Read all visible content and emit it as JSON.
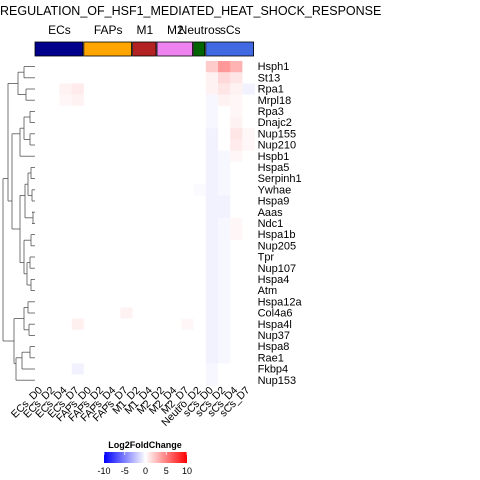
{
  "chart_data": {
    "type": "heatmap",
    "title": "REGULATION_OF_HSF1_MEDIATED_HEAT_SHOCK_RESPONSE",
    "columns": [
      "ECs_D0",
      "ECs_D2",
      "ECs_D4",
      "ECs_D7",
      "FAPs_D0",
      "FAPs_D2",
      "FAPs_D4",
      "FAPs_D7",
      "M1_D2",
      "M1_D4",
      "M2_D2",
      "M2_D4",
      "M2_D7",
      "Neutro_D2",
      "sCs_D0",
      "sCs_D2",
      "sCs_D4",
      "sCs_D7"
    ],
    "rows": [
      "Hsph1",
      "St13",
      "Rpa1",
      "Mrpl18",
      "Rpa3",
      "Dnajc2",
      "Nup155",
      "Nup210",
      "Hspb1",
      "Hspa5",
      "Serpinh1",
      "Ywhae",
      "Hspa9",
      "Aaas",
      "Ndc1",
      "Hspa1b",
      "Nup205",
      "Tpr",
      "Nup107",
      "Hspa4",
      "Atm",
      "Hspa12a",
      "Col4a6",
      "Hspa4l",
      "Nup37",
      "Hspa8",
      "Rae1",
      "Fkbp4",
      "Nup153"
    ],
    "groups": [
      {
        "name": "ECs",
        "color": "#00008B",
        "count": 4
      },
      {
        "name": "FAPs",
        "color": "#FFA500",
        "count": 4
      },
      {
        "name": "M1",
        "color": "#B22222",
        "count": 2
      },
      {
        "name": "M2",
        "color": "#EE82EE",
        "count": 3
      },
      {
        "name": "Neutros",
        "color": "#006400",
        "count": 1
      },
      {
        "name": "sCs",
        "color": "#4169E1",
        "count": 4
      }
    ],
    "values": [
      [
        0,
        0,
        0,
        0,
        0,
        0,
        0,
        0,
        0,
        0,
        0,
        0,
        0,
        0,
        2,
        4,
        3,
        0
      ],
      [
        0,
        0,
        0,
        0,
        0,
        0,
        0,
        0,
        0,
        0,
        0,
        0,
        0,
        0,
        0.5,
        1.5,
        1,
        0
      ],
      [
        0,
        0,
        0.5,
        0.8,
        0,
        0,
        0,
        0,
        0,
        0,
        0,
        0,
        0,
        0,
        0.5,
        1,
        0.5,
        -0.5
      ],
      [
        0,
        0,
        0.3,
        0.5,
        0,
        0,
        0,
        0,
        0,
        0,
        0,
        0,
        0,
        0,
        -0.3,
        0.5,
        0.3,
        0
      ],
      [
        0,
        0,
        0,
        0,
        0,
        0,
        0,
        0,
        0,
        0,
        0,
        0,
        0,
        0,
        -0.3,
        0,
        0.3,
        0
      ],
      [
        0,
        0,
        0,
        0,
        0,
        0,
        0,
        0,
        0,
        0,
        0,
        0,
        0,
        0,
        -0.3,
        0,
        0.5,
        0
      ],
      [
        0,
        0,
        0,
        0,
        0,
        0,
        0,
        0,
        0,
        0,
        0,
        0,
        0,
        0,
        -0.5,
        0,
        1,
        0.3
      ],
      [
        0,
        0,
        0,
        0,
        0,
        0,
        0,
        0,
        0,
        0,
        0,
        0,
        0,
        0,
        -0.5,
        0,
        0.8,
        0.3
      ],
      [
        0,
        0,
        0,
        0,
        0,
        0,
        0,
        0,
        0,
        0,
        0,
        0,
        0,
        0,
        -0.5,
        -0.3,
        0.3,
        0
      ],
      [
        0,
        0,
        0,
        0,
        0,
        0,
        0,
        0,
        0,
        0,
        0,
        0,
        0,
        0,
        -0.5,
        -0.3,
        0,
        0
      ],
      [
        0,
        0,
        0,
        0,
        0,
        0,
        0,
        0,
        0,
        0,
        0,
        0,
        0,
        0,
        -0.5,
        -0.3,
        0,
        0
      ],
      [
        0,
        0,
        0,
        0,
        0,
        0,
        0,
        0,
        0,
        0,
        0,
        0,
        0,
        -0.2,
        -0.5,
        -0.3,
        0,
        0
      ],
      [
        0,
        0,
        0,
        0,
        0,
        0,
        0,
        0,
        0,
        0,
        0,
        0,
        0,
        0,
        -0.5,
        -0.5,
        0,
        0
      ],
      [
        0,
        0,
        0,
        0,
        0,
        0,
        0,
        0,
        0,
        0,
        0,
        0,
        0,
        0,
        -0.5,
        -0.5,
        0,
        0
      ],
      [
        0,
        0,
        0,
        0,
        0,
        0,
        0,
        0,
        0,
        0,
        0,
        0,
        0,
        0,
        -0.5,
        -0.3,
        0.3,
        0
      ],
      [
        0,
        0,
        0,
        0,
        0,
        0,
        0,
        0,
        0,
        0,
        0,
        0,
        0,
        0,
        -0.5,
        -0.3,
        0.3,
        0
      ],
      [
        0,
        0,
        0,
        0,
        0,
        0,
        0,
        0,
        0,
        0,
        0,
        0,
        0,
        0,
        -0.5,
        -0.3,
        0,
        0
      ],
      [
        0,
        0,
        0,
        0,
        0,
        0,
        0,
        0,
        0,
        0,
        0,
        0,
        0,
        0,
        -0.5,
        -0.3,
        0,
        0
      ],
      [
        0,
        0,
        0,
        0,
        0,
        0,
        0,
        0,
        0,
        0,
        0,
        0,
        0,
        0,
        -0.5,
        -0.3,
        0,
        0
      ],
      [
        0,
        0,
        0,
        0,
        0,
        0,
        0,
        0,
        0,
        0,
        0,
        0,
        0,
        0,
        -0.5,
        -0.3,
        0,
        0
      ],
      [
        0,
        0,
        0,
        0,
        0,
        0,
        0,
        0,
        0,
        0,
        0,
        0,
        0,
        0,
        -0.5,
        -0.3,
        0,
        0
      ],
      [
        0,
        0,
        0,
        0,
        0,
        0,
        0,
        0,
        0,
        0,
        0,
        0,
        0,
        0,
        -0.5,
        -0.3,
        0,
        0
      ],
      [
        0,
        0,
        0,
        0,
        0,
        0,
        0,
        0.5,
        0,
        0,
        0,
        0,
        0,
        0,
        -0.5,
        -0.3,
        0,
        0
      ],
      [
        0,
        0,
        0,
        0.6,
        0,
        0,
        0,
        0,
        0,
        0,
        0,
        0,
        0.3,
        0,
        -0.5,
        -0.3,
        0,
        0
      ],
      [
        0,
        0,
        0,
        0,
        0,
        0,
        0,
        0,
        0,
        0,
        0,
        0,
        0,
        0,
        -0.5,
        -0.3,
        0,
        0
      ],
      [
        0,
        0,
        0,
        0,
        0,
        0,
        0,
        0,
        0,
        0,
        0,
        0,
        0,
        0,
        -0.5,
        -0.3,
        0,
        0
      ],
      [
        0,
        0,
        0,
        0,
        0,
        0,
        0,
        0,
        0,
        0,
        0,
        0,
        0,
        0,
        -0.5,
        -0.3,
        0,
        0
      ],
      [
        0,
        0,
        0,
        -0.5,
        0,
        0,
        0,
        0,
        0,
        0,
        0,
        0,
        0,
        0,
        -0.3,
        0,
        0,
        0
      ],
      [
        0,
        0,
        0,
        0,
        0,
        0,
        0,
        0,
        0,
        0,
        0,
        0,
        0,
        0,
        -0.3,
        0,
        0,
        0
      ]
    ],
    "legend": {
      "title": "Log2FoldChange",
      "min": -10,
      "max": 10,
      "ticks": [
        -10,
        -5,
        0,
        5,
        10
      ],
      "colors": [
        "#0000FF",
        "#FFFFFF",
        "#FF0000"
      ]
    }
  }
}
